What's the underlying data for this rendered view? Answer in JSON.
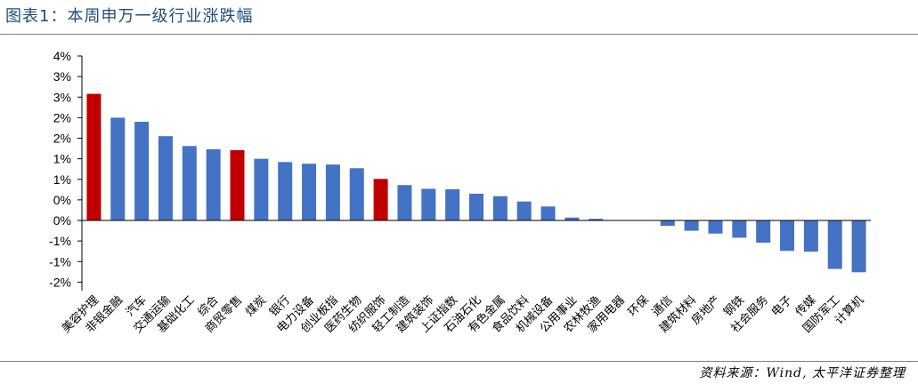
{
  "header": {
    "title": "图表1：本周申万一级行业涨跌幅"
  },
  "footer": {
    "source": "资料来源：Wind, 太平洋证券整理"
  },
  "colors": {
    "positive": "#4472c4",
    "highlight": "#c00000",
    "axis": "#000000",
    "accent_text": "#1f4e79"
  },
  "chart_data": {
    "type": "bar",
    "y_tick_labels": [
      "4%",
      "3%",
      "3%",
      "2%",
      "2%",
      "1%",
      "1%",
      "0%",
      "0%",
      "-1%",
      "-1%",
      "-2%"
    ],
    "ylim": [
      -1.5,
      4.0
    ],
    "categories": [
      "美容护理",
      "非银金融",
      "汽车",
      "交通运输",
      "基础化工",
      "综合",
      "商贸零售",
      "煤炭",
      "银行",
      "电力设备",
      "创业板指",
      "医药生物",
      "纺织服饰",
      "轻工制造",
      "建筑装饰",
      "上证指数",
      "石油石化",
      "有色金属",
      "食品饮料",
      "机械设备",
      "公用事业",
      "农林牧渔",
      "家用电器",
      "环保",
      "通信",
      "建筑材料",
      "房地产",
      "钢铁",
      "社会服务",
      "电子",
      "传媒",
      "国防军工",
      "计算机"
    ],
    "values": [
      3.08,
      2.5,
      2.4,
      2.05,
      1.81,
      1.73,
      1.71,
      1.5,
      1.42,
      1.38,
      1.36,
      1.27,
      1.01,
      0.86,
      0.77,
      0.76,
      0.65,
      0.59,
      0.46,
      0.34,
      0.07,
      0.04,
      0.0,
      0.0,
      -0.13,
      -0.25,
      -0.32,
      -0.42,
      -0.54,
      -0.74,
      -0.76,
      -1.18,
      -1.26
    ],
    "highlighted": [
      "美容护理",
      "商贸零售",
      "纺织服饰"
    ]
  }
}
